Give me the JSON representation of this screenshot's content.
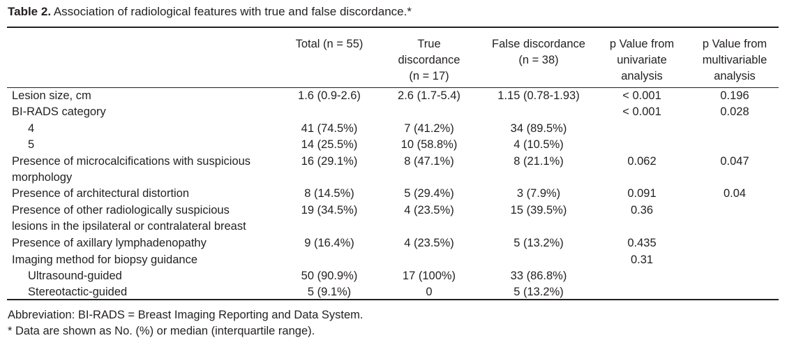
{
  "caption": {
    "label": "Table 2.",
    "text": "Association of radiological features with true and false discordance.*"
  },
  "headers": {
    "total": "Total (n = 55)",
    "true_l1": "True",
    "true_l2": "discordance",
    "true_l3": "(n = 17)",
    "false_l1": "False discordance",
    "false_l2": "(n = 38)",
    "uni_l1": "p Value from",
    "uni_l2": "univariate",
    "uni_l3": "analysis",
    "multi_l1": "p Value from",
    "multi_l2": "multivariable",
    "multi_l3": "analysis"
  },
  "rows": [
    {
      "label": "Lesion size, cm",
      "total": "1.6 (0.9-2.6)",
      "true": "2.6 (1.7-5.4)",
      "false": "1.15 (0.78-1.93)",
      "uni": "< 0.001",
      "multi": "0.196"
    },
    {
      "label": "BI-RADS category",
      "total": "",
      "true": "",
      "false": "",
      "uni": "< 0.001",
      "multi": "0.028"
    },
    {
      "label": "4",
      "total": "41 (74.5%)",
      "true": "7 (41.2%)",
      "false": "34 (89.5%)",
      "uni": "",
      "multi": ""
    },
    {
      "label": "5",
      "total": "14 (25.5%)",
      "true": "10 (58.8%)",
      "false": "4 (10.5%)",
      "uni": "",
      "multi": ""
    },
    {
      "label": "Presence of microcalcifications with suspicious",
      "label2": "morphology",
      "total": "16 (29.1%)",
      "true": "8 (47.1%)",
      "false": "8 (21.1%)",
      "uni": "0.062",
      "multi": "0.047"
    },
    {
      "label": "Presence of architectural distortion",
      "total": "8 (14.5%)",
      "true": "5 (29.4%)",
      "false": "3 (7.9%)",
      "uni": "0.091",
      "multi": "0.04"
    },
    {
      "label": "Presence of other radiologically suspicious",
      "label2": "lesions in the ipsilateral or contralateral breast",
      "total": "19 (34.5%)",
      "true": "4 (23.5%)",
      "false": "15 (39.5%)",
      "uni": "0.36",
      "multi": ""
    },
    {
      "label": "Presence of axillary lymphadenopathy",
      "total": "9 (16.4%)",
      "true": "4 (23.5%)",
      "false": "5 (13.2%)",
      "uni": "0.435",
      "multi": ""
    },
    {
      "label": "Imaging method for biopsy guidance",
      "total": "",
      "true": "",
      "false": "",
      "uni": "0.31",
      "multi": ""
    },
    {
      "label": "Ultrasound-guided",
      "total": "50 (90.9%)",
      "true": "17 (100%)",
      "false": "33 (86.8%)",
      "uni": "",
      "multi": ""
    },
    {
      "label": "Stereotactic-guided",
      "total": "5 (9.1%)",
      "true": "0",
      "false": "5 (13.2%)",
      "uni": "",
      "multi": ""
    }
  ],
  "footnotes": {
    "abbreviation": "Abbreviation: BI-RADS = Breast Imaging Reporting and Data System.",
    "data_note": "* Data are shown as No. (%) or median (interquartile range)."
  }
}
